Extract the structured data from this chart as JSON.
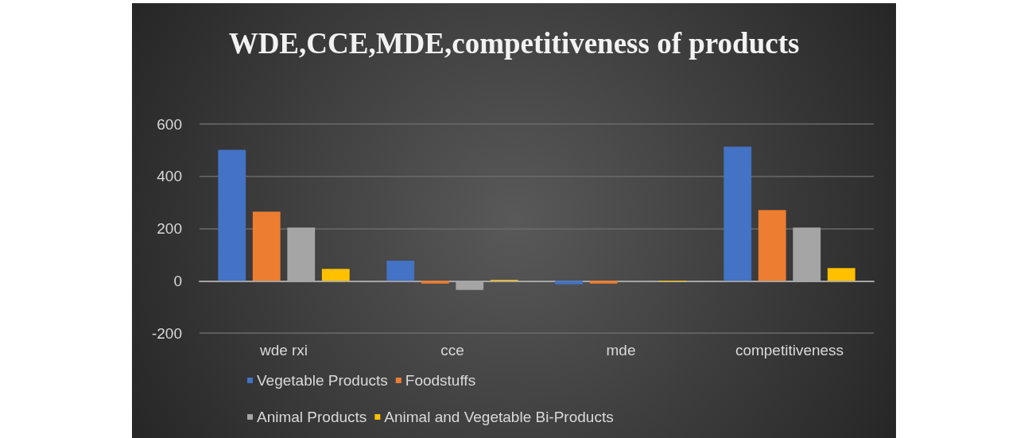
{
  "chart_data": {
    "type": "bar",
    "title": "WDE,CCE,MDE,competitiveness of products",
    "categories": [
      "wde rxi",
      "cce",
      "mde",
      "competitiveness"
    ],
    "series": [
      {
        "name": "Vegetable Products",
        "color": "#4472c4",
        "values": [
          501,
          77,
          -14,
          513
        ]
      },
      {
        "name": "Foodstuffs",
        "color": "#ed7d31",
        "values": [
          265,
          -11,
          -11,
          271
        ]
      },
      {
        "name": "Animal Products",
        "color": "#a5a5a5",
        "values": [
          204,
          -35,
          1,
          204
        ]
      },
      {
        "name": "Animal and Vegetable Bi-Products",
        "color": "#ffc000",
        "values": [
          46,
          4,
          -3,
          49
        ]
      }
    ],
    "ylim": [
      -200,
      600
    ],
    "yticks": [
      -200,
      0,
      200,
      400,
      600
    ],
    "grid": "y",
    "legend": "bottom"
  }
}
